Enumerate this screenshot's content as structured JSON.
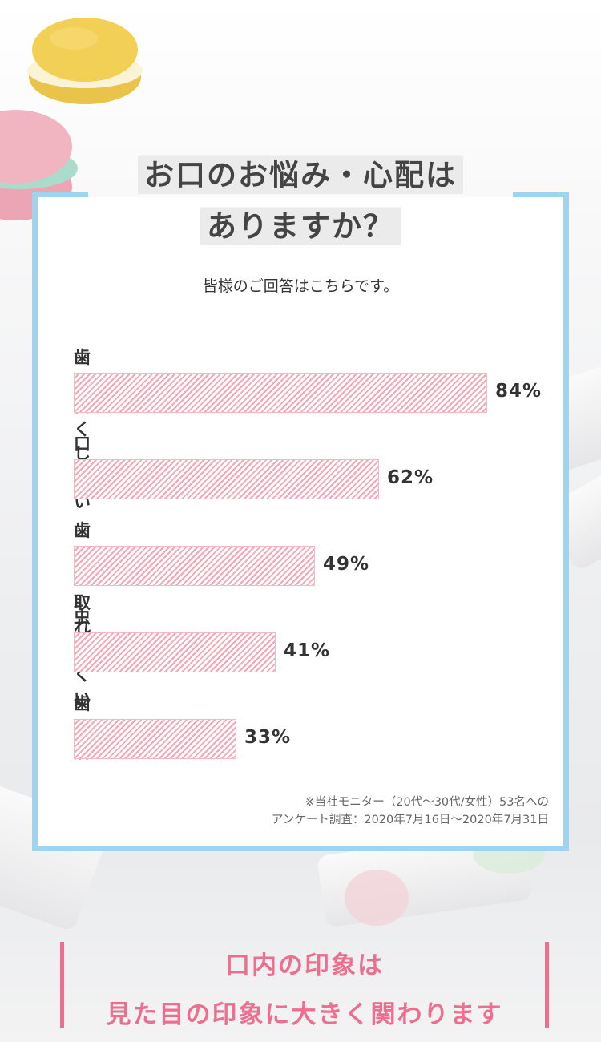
{
  "header": {
    "title_line1": "お口のお悩み・心配は",
    "title_line2": "ありますか？"
  },
  "subtitle": "皆様のご回答はこちらです。",
  "chart_data": {
    "type": "bar",
    "orientation": "horizontal",
    "categories": [
      "歯を白くしたい",
      "口臭",
      "歯石が取れにくい",
      "虫歯",
      "歯周病"
    ],
    "values": [
      84,
      62,
      49,
      41,
      33
    ],
    "value_labels": [
      "84%",
      "62%",
      "49%",
      "41%",
      "33%"
    ],
    "xlim": [
      0,
      100
    ],
    "grid": false,
    "bar_color": "#f4a6b6"
  },
  "note_line1": "※当社モニター（20代〜30代/女性）53名への",
  "note_line2": "アンケート調査：2020年7月16日〜2020年7月31日",
  "footer": {
    "line1": "口内の印象は",
    "line2": "見た目の印象に大きく関わります"
  },
  "colors": {
    "frame": "#9fd3ee",
    "accent_pink": "#ec6f8f"
  }
}
